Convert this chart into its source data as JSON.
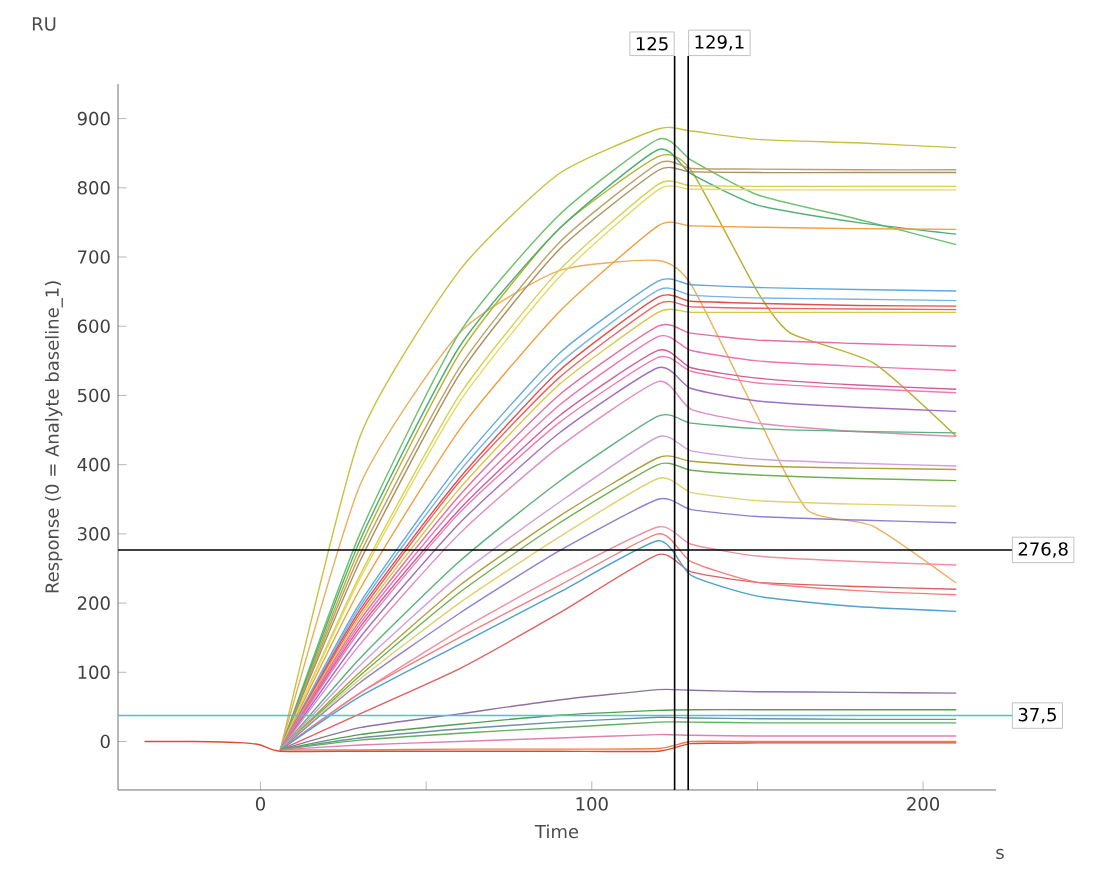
{
  "chart_data": {
    "type": "line",
    "xlabel": "Time",
    "ylabel": "Response (0 = Analyte baseline_1)",
    "annotations": [
      "RU",
      "s"
    ],
    "xlim": [
      -43,
      222
    ],
    "ylim": [
      -70,
      950
    ],
    "xticks": [
      0,
      {
        "value": 50,
        "label": null
      },
      100,
      {
        "value": 150,
        "label": null
      },
      200
    ],
    "yticks": [
      0,
      100,
      200,
      300,
      400,
      500,
      600,
      700,
      800,
      900
    ],
    "x": [
      6,
      30,
      60,
      90,
      120,
      130,
      150,
      180,
      210
    ],
    "marker": "none",
    "line_style": "solid",
    "ref_lines": [
      {
        "axis": "y",
        "value": 276.8,
        "label": "276,8",
        "color": "#000000"
      },
      {
        "axis": "y",
        "value": 37.5,
        "label": "37,5",
        "color": "#40c8d8"
      },
      {
        "axis": "x",
        "value": 125,
        "label": "125",
        "color": "#000000"
      },
      {
        "axis": "x",
        "value": 129.1,
        "label": "129,1",
        "color": "#000000"
      }
    ],
    "series": [
      {
        "color": "#c8c040",
        "values": [
          -12,
          440,
          680,
          820,
          885,
          882,
          870,
          865,
          858
        ]
      },
      {
        "color": "#e8b060",
        "x": [
          6,
          30,
          60,
          90,
          120,
          130,
          150,
          165,
          185,
          210
        ],
        "values": [
          -12,
          370,
          590,
          680,
          695,
          660,
          470,
          335,
          311,
          229
        ]
      },
      {
        "color": "#b8b030",
        "x": [
          6,
          30,
          60,
          90,
          120,
          130,
          150,
          160,
          185,
          210
        ],
        "values": [
          -12,
          280,
          560,
          740,
          845,
          825,
          650,
          590,
          547,
          441
        ]
      },
      {
        "color": "#6cbf6c",
        "values": [
          -12,
          300,
          590,
          760,
          870,
          840,
          790,
          755,
          718
        ]
      },
      {
        "color": "#4fae74",
        "values": [
          -12,
          290,
          570,
          740,
          855,
          820,
          775,
          750,
          733
        ]
      },
      {
        "color": "#bfa068",
        "values": [
          -12,
          270,
          540,
          720,
          835,
          828,
          827,
          826,
          826
        ]
      },
      {
        "color": "#a89060",
        "values": [
          -12,
          260,
          530,
          710,
          825,
          823,
          822,
          822,
          822
        ]
      },
      {
        "color": "#d8d050",
        "values": [
          -12,
          240,
          500,
          680,
          805,
          803,
          802,
          802,
          802
        ]
      },
      {
        "color": "#e2da66",
        "values": [
          -12,
          235,
          490,
          670,
          797,
          798,
          797,
          797,
          797
        ]
      },
      {
        "color": "#f0a040",
        "values": [
          -12,
          220,
          450,
          620,
          745,
          745,
          743,
          741,
          740
        ]
      },
      {
        "color": "#62a8e0",
        "values": [
          -12,
          200,
          400,
          560,
          665,
          660,
          656,
          653,
          651
        ]
      },
      {
        "color": "#78b4e6",
        "values": [
          -12,
          195,
          390,
          545,
          652,
          645,
          641,
          639,
          637
        ]
      },
      {
        "color": "#e05050",
        "values": [
          -12,
          190,
          380,
          535,
          642,
          636,
          633,
          630,
          629
        ]
      },
      {
        "color": "#ea6464",
        "values": [
          -12,
          185,
          375,
          525,
          632,
          628,
          626,
          625,
          624
        ]
      },
      {
        "color": "#d6c844",
        "values": [
          -12,
          180,
          365,
          515,
          620,
          620,
          620,
          620,
          620
        ]
      },
      {
        "color": "#e070a0",
        "values": [
          -12,
          175,
          355,
          500,
          600,
          590,
          580,
          575,
          571
        ]
      },
      {
        "color": "#ec74b4",
        "values": [
          -12,
          170,
          345,
          485,
          585,
          565,
          550,
          542,
          536
        ]
      },
      {
        "color": "#d05c9c",
        "values": [
          -12,
          165,
          335,
          470,
          565,
          540,
          525,
          515,
          509
        ]
      },
      {
        "color": "#f07cae",
        "values": [
          -12,
          160,
          330,
          460,
          555,
          535,
          518,
          510,
          504
        ]
      },
      {
        "color": "#a070c0",
        "values": [
          -12,
          150,
          315,
          445,
          540,
          510,
          492,
          483,
          477
        ]
      },
      {
        "color": "#e08cc0",
        "values": [
          -12,
          140,
          300,
          425,
          520,
          480,
          460,
          448,
          441
        ]
      },
      {
        "color": "#5cb07c",
        "values": [
          -12,
          120,
          260,
          375,
          470,
          460,
          452,
          448,
          446
        ]
      },
      {
        "color": "#d0a0d8",
        "values": [
          -12,
          110,
          240,
          345,
          440,
          420,
          408,
          402,
          398
        ]
      },
      {
        "color": "#b0a040",
        "values": [
          -12,
          100,
          225,
          325,
          410,
          405,
          398,
          395,
          393
        ]
      },
      {
        "color": "#70b050",
        "values": [
          -12,
          95,
          215,
          315,
          400,
          392,
          385,
          380,
          377
        ]
      },
      {
        "color": "#e0d070",
        "values": [
          -12,
          90,
          200,
          295,
          380,
          360,
          348,
          343,
          340
        ]
      },
      {
        "color": "#9080d0",
        "values": [
          -12,
          85,
          185,
          275,
          350,
          335,
          325,
          320,
          316
        ]
      },
      {
        "color": "#f090a0",
        "values": [
          -12,
          70,
          160,
          240,
          310,
          285,
          268,
          260,
          255
        ]
      },
      {
        "color": "#e06060",
        "values": [
          -12,
          40,
          105,
          185,
          270,
          245,
          230,
          224,
          220
        ]
      },
      {
        "color": "#f08080",
        "values": [
          -12,
          70,
          150,
          225,
          300,
          260,
          230,
          218,
          212
        ]
      },
      {
        "color": "#50a0d0",
        "values": [
          -12,
          65,
          140,
          215,
          290,
          240,
          210,
          195,
          188
        ]
      },
      {
        "color": "#9070a0",
        "values": [
          -12,
          20,
          40,
          60,
          75,
          74,
          72,
          71,
          70
        ]
      },
      {
        "color": "#50a050",
        "values": [
          -12,
          10,
          25,
          38,
          45,
          46,
          46,
          46,
          46
        ]
      },
      {
        "color": "#7090a0",
        "values": [
          -12,
          5,
          18,
          28,
          35,
          34,
          33,
          32,
          32
        ]
      },
      {
        "color": "#60b060",
        "values": [
          -12,
          2,
          12,
          20,
          28,
          28,
          27,
          27,
          27
        ]
      },
      {
        "color": "#e080b0",
        "values": [
          -12,
          -5,
          0,
          5,
          10,
          9,
          8,
          8,
          8
        ]
      },
      {
        "color": "#f08040",
        "values": [
          -12,
          -12,
          -11,
          -11,
          -10,
          0,
          0,
          0,
          0
        ]
      },
      {
        "color": "#e04a30",
        "x": [
          -35,
          -20,
          -5,
          0,
          6,
          30,
          60,
          90,
          120,
          130,
          150,
          180,
          210
        ],
        "values": [
          0,
          0,
          -2,
          -5,
          -14,
          -14,
          -14,
          -14,
          -14,
          -3,
          -2,
          -2,
          -2
        ]
      }
    ]
  }
}
